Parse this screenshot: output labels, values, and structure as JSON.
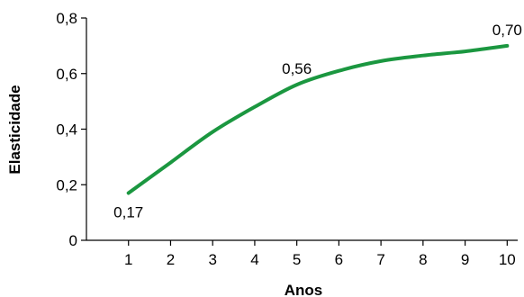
{
  "chart_data": {
    "type": "line",
    "title": "",
    "xlabel": "Anos",
    "ylabel": "Elasticidade",
    "x": [
      1,
      2,
      3,
      4,
      5,
      6,
      7,
      8,
      9,
      10
    ],
    "xlim": [
      0,
      10.25
    ],
    "ylim": [
      0,
      0.8
    ],
    "x_ticks": [
      "1",
      "2",
      "3",
      "4",
      "5",
      "6",
      "7",
      "8",
      "9",
      "10"
    ],
    "y_ticks": [
      {
        "value": 0,
        "label": "0"
      },
      {
        "value": 0.2,
        "label": "0,2"
      },
      {
        "value": 0.4,
        "label": "0,4"
      },
      {
        "value": 0.6,
        "label": "0,6"
      },
      {
        "value": 0.8,
        "label": "0,8"
      }
    ],
    "series": [
      {
        "color": "#1b9740",
        "values": [
          0.17,
          0.28,
          0.39,
          0.48,
          0.56,
          0.61,
          0.645,
          0.665,
          0.68,
          0.7
        ]
      }
    ],
    "annotations": [
      {
        "x": 1,
        "y": 0.17,
        "label": "0,17",
        "position": "below"
      },
      {
        "x": 5,
        "y": 0.56,
        "label": "0,56",
        "position": "above"
      },
      {
        "x": 10,
        "y": 0.7,
        "label": "0,70",
        "position": "above"
      }
    ],
    "grid": false,
    "legend": "none"
  }
}
